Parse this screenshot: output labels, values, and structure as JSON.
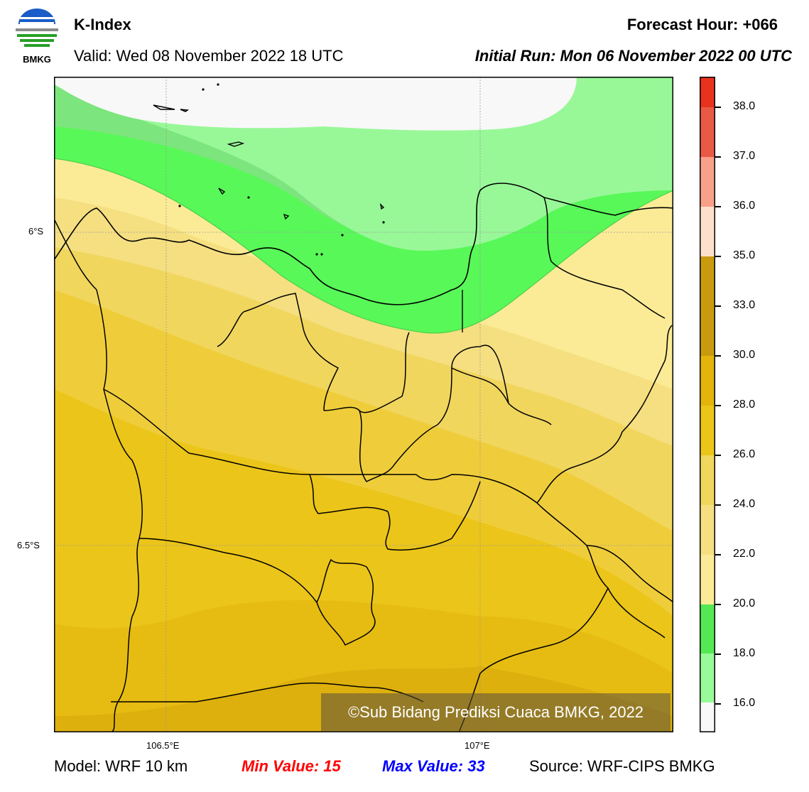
{
  "header": {
    "title": "K-Index",
    "valid": "Valid: Wed 08 November 2022 18 UTC",
    "forecast_hour": "Forecast Hour: +066",
    "initial_run": "Initial Run: Mon 06 November 2022 00 UTC",
    "logo_text": "BMKG"
  },
  "map": {
    "lat_labels": [
      "6°S",
      "6.5°S"
    ],
    "lon_labels": [
      "106.5°E",
      "107°E"
    ],
    "copyright": "©Sub Bidang Prediksi Cuaca BMKG, 2022"
  },
  "colorbar": {
    "labels": [
      "38.0",
      "37.0",
      "36.0",
      "35.0",
      "33.0",
      "30.0",
      "28.0",
      "26.0",
      "24.0",
      "22.0",
      "20.0",
      "18.0",
      "16.0"
    ],
    "colors": [
      "#e8321e",
      "#e85a46",
      "#f2786a",
      "#f8a08a",
      "#fde0cc",
      "#c89a0e",
      "#d4a70a",
      "#e2b40c",
      "#ebc619",
      "#eec73a",
      "#f0d45e",
      "#f3de83",
      "#fbec97",
      "#55d855",
      "#5cf35c",
      "#98fa98",
      "#f8f8f8"
    ]
  },
  "footer": {
    "model": "Model: WRF 10 km",
    "min_value": "Min Value: 15",
    "max_value": "Max Value: 33",
    "source": "Source: WRF-CIPS BMKG"
  }
}
